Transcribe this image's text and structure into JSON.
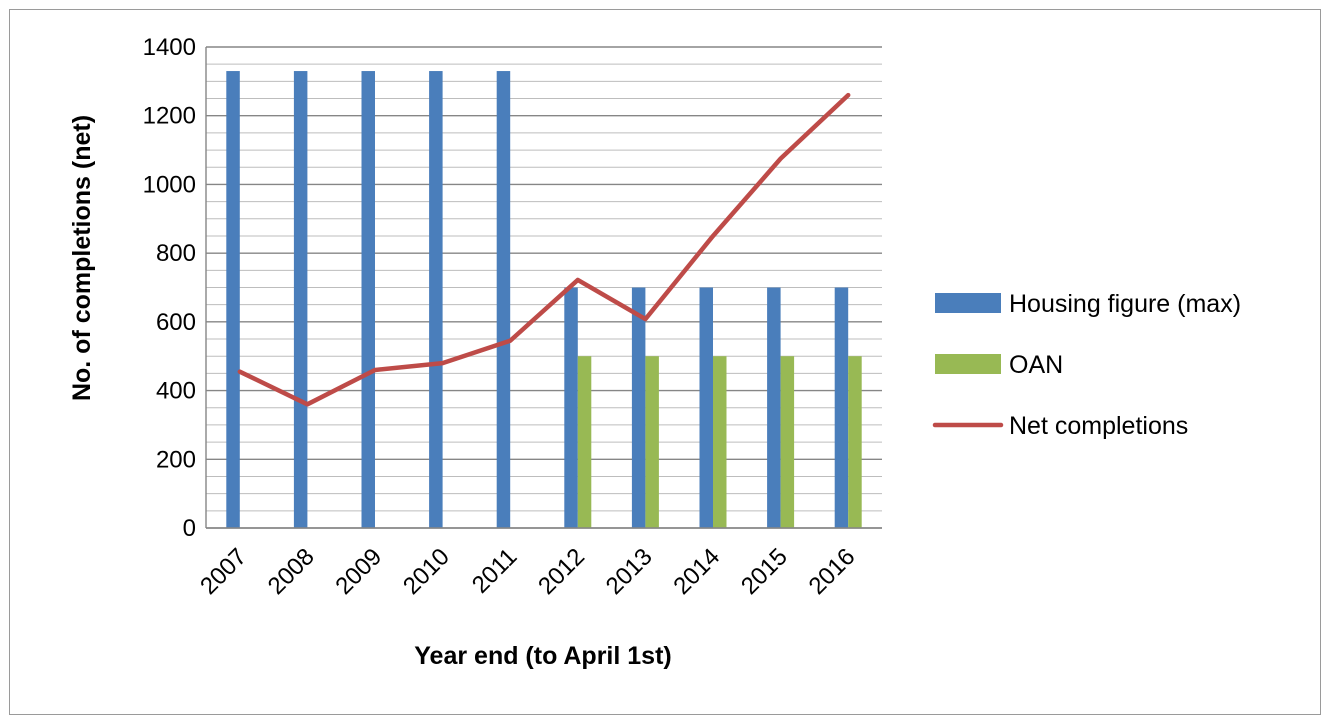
{
  "chart_data": {
    "type": "bar",
    "title": "",
    "xlabel": "Year end (to April 1st)",
    "ylabel": "No. of completions (net)",
    "ylim": [
      0,
      1400
    ],
    "y_ticks": [
      0,
      200,
      400,
      600,
      800,
      1000,
      1200,
      1400
    ],
    "minor_grid_step": 50,
    "grid": true,
    "legend_position": "right",
    "categories": [
      "2007",
      "2008",
      "2009",
      "2010",
      "2011",
      "2012",
      "2013",
      "2014",
      "2015",
      "2016"
    ],
    "series": [
      {
        "name": "Housing figure (max)",
        "type": "bar",
        "color": "#4a7ebb",
        "values": [
          1330,
          1330,
          1330,
          1330,
          1330,
          700,
          700,
          700,
          700,
          700
        ]
      },
      {
        "name": "OAN",
        "type": "bar",
        "color": "#98b954",
        "values": [
          null,
          null,
          null,
          null,
          null,
          500,
          500,
          500,
          500,
          500
        ]
      },
      {
        "name": "Net completions",
        "type": "line",
        "color": "#be4b48",
        "values": [
          455,
          360,
          460,
          480,
          545,
          722,
          608,
          850,
          1075,
          1260
        ]
      }
    ]
  }
}
